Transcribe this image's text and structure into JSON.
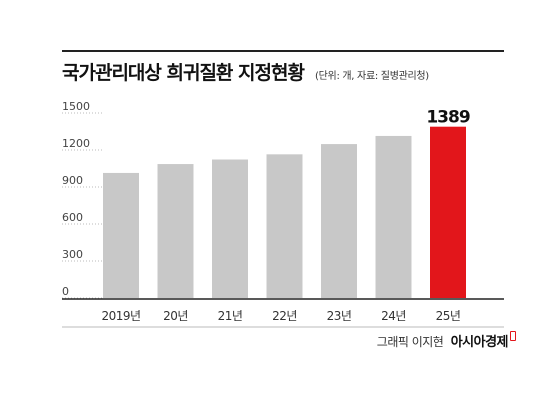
{
  "header": {
    "title": "국가관리대상 희귀질환 지정현황",
    "subtitle": "(단위: 개, 자료: 질병관리청)"
  },
  "footer": {
    "credit": "그래픽 이지현",
    "brand": "아시아경제"
  },
  "colors": {
    "bar": "#c8c8c8",
    "highlight": "#e2161b"
  },
  "chart_data": {
    "type": "bar",
    "categories": [
      "2019년",
      "20년",
      "21년",
      "22년",
      "23년",
      "24년",
      "25년"
    ],
    "values": [
      1014,
      1086,
      1123,
      1165,
      1248,
      1314,
      1389
    ],
    "yticks": [
      0,
      300,
      600,
      900,
      1200,
      1500
    ],
    "ylim": [
      0,
      1500
    ],
    "highlight_index": 6,
    "data_labels": [
      "",
      "",
      "",
      "",
      "",
      "",
      "1389"
    ],
    "grid": false
  }
}
